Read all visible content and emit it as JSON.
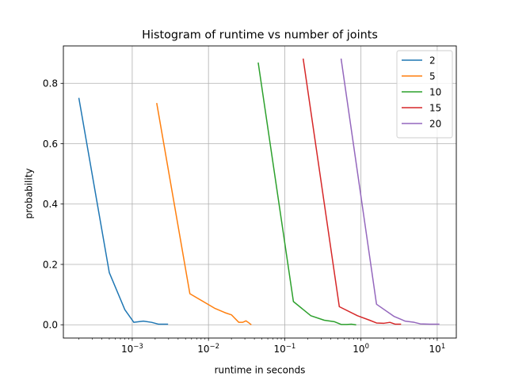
{
  "chart_data": {
    "type": "line",
    "title": "Histogram of runtime vs number of joints",
    "xlabel": "runtime in seconds",
    "ylabel": "probability",
    "xscale": "log",
    "xlim": [
      0.000125,
      17.8
    ],
    "ylim": [
      -0.044,
      0.924
    ],
    "x_ticks": [
      {
        "value": 0.001,
        "base": "10",
        "exp": "−3"
      },
      {
        "value": 0.01,
        "base": "10",
        "exp": "−2"
      },
      {
        "value": 0.1,
        "base": "10",
        "exp": "−1"
      },
      {
        "value": 1,
        "base": "10",
        "exp": "0"
      },
      {
        "value": 10,
        "base": "10",
        "exp": "1"
      }
    ],
    "y_ticks": [
      {
        "value": 0.0,
        "label": "0.0"
      },
      {
        "value": 0.2,
        "label": "0.2"
      },
      {
        "value": 0.4,
        "label": "0.4"
      },
      {
        "value": 0.6,
        "label": "0.6"
      },
      {
        "value": 0.8,
        "label": "0.8"
      }
    ],
    "grid": true,
    "legend_position": "upper right",
    "series": [
      {
        "name": "2",
        "color": "#1f77b4",
        "points": [
          [
            0.0002,
            0.75
          ],
          [
            0.0005,
            0.173
          ],
          [
            0.0008,
            0.05
          ],
          [
            0.00105,
            0.008
          ],
          [
            0.0014,
            0.012
          ],
          [
            0.0018,
            0.008
          ],
          [
            0.0022,
            0.002
          ],
          [
            0.0029,
            0.002
          ]
        ]
      },
      {
        "name": "5",
        "color": "#ff7f0e",
        "points": [
          [
            0.0021,
            0.733
          ],
          [
            0.0057,
            0.103
          ],
          [
            0.012,
            0.055
          ],
          [
            0.0165,
            0.04
          ],
          [
            0.02,
            0.033
          ],
          [
            0.025,
            0.008
          ],
          [
            0.028,
            0.008
          ],
          [
            0.031,
            0.013
          ],
          [
            0.034,
            0.006
          ],
          [
            0.036,
            0.001
          ]
        ]
      },
      {
        "name": "10",
        "color": "#2ca02c",
        "points": [
          [
            0.045,
            0.867
          ],
          [
            0.13,
            0.077
          ],
          [
            0.22,
            0.03
          ],
          [
            0.33,
            0.015
          ],
          [
            0.45,
            0.01
          ],
          [
            0.55,
            0.001
          ],
          [
            0.65,
            0.001
          ],
          [
            0.75,
            0.002
          ],
          [
            0.85,
            0.0
          ]
        ]
      },
      {
        "name": "15",
        "color": "#d62728",
        "points": [
          [
            0.175,
            0.88
          ],
          [
            0.52,
            0.06
          ],
          [
            0.9,
            0.03
          ],
          [
            1.3,
            0.015
          ],
          [
            1.6,
            0.006
          ],
          [
            2.0,
            0.005
          ],
          [
            2.4,
            0.008
          ],
          [
            2.8,
            0.002
          ],
          [
            3.3,
            0.002
          ]
        ]
      },
      {
        "name": "20",
        "color": "#9467bd",
        "points": [
          [
            0.55,
            0.88
          ],
          [
            1.6,
            0.068
          ],
          [
            2.7,
            0.028
          ],
          [
            3.8,
            0.012
          ],
          [
            5.0,
            0.008
          ],
          [
            6.0,
            0.003
          ],
          [
            8.0,
            0.002
          ],
          [
            10.5,
            0.002
          ]
        ]
      }
    ]
  }
}
